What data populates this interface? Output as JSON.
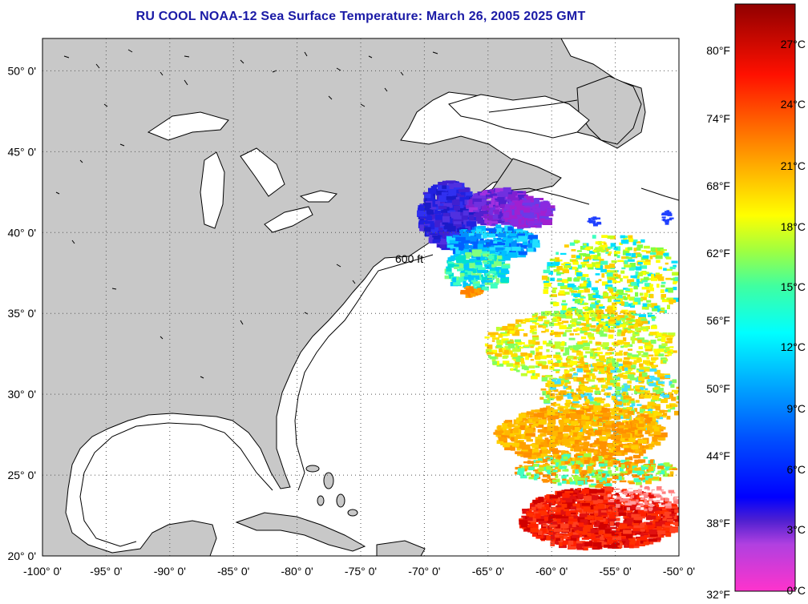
{
  "title": "RU COOL  NOAA-12  Sea Surface Temperature:  March 26, 2005 2025 GMT",
  "map": {
    "lon_range": [
      -100,
      -50
    ],
    "lat_range": [
      20,
      52
    ],
    "x_ticks": [
      {
        "value": -100,
        "label": "-100° 0'"
      },
      {
        "value": -95,
        "label": "-95° 0'"
      },
      {
        "value": -90,
        "label": "-90° 0'"
      },
      {
        "value": -85,
        "label": "-85° 0'"
      },
      {
        "value": -80,
        "label": "-80° 0'"
      },
      {
        "value": -75,
        "label": "-75° 0'"
      },
      {
        "value": -70,
        "label": "-70° 0'"
      },
      {
        "value": -65,
        "label": "-65° 0'"
      },
      {
        "value": -60,
        "label": "-60° 0'"
      },
      {
        "value": -55,
        "label": "-55° 0'"
      },
      {
        "value": -50,
        "label": "-50° 0'"
      }
    ],
    "y_ticks": [
      {
        "value": 50,
        "label": "50° 0'"
      },
      {
        "value": 45,
        "label": "45° 0'"
      },
      {
        "value": 40,
        "label": "40° 0'"
      },
      {
        "value": 35,
        "label": "35° 0'"
      },
      {
        "value": 30,
        "label": "30° 0'"
      },
      {
        "value": 25,
        "label": "25° 0'"
      },
      {
        "value": 20,
        "label": "20° 0'"
      }
    ],
    "isobath_label": "600 ft",
    "land_color": "#c8c8c8",
    "ocean_color": "#ffffff",
    "grid": "dotted"
  },
  "colorbar": {
    "fahrenheit": [
      "80°F",
      "74°F",
      "68°F",
      "62°F",
      "56°F",
      "50°F",
      "44°F",
      "38°F",
      "32°F"
    ],
    "celsius": [
      "27°C",
      "24°C",
      "21°C",
      "18°C",
      "15°C",
      "12°C",
      "9°C",
      "6°C",
      "3°C",
      "0°C"
    ],
    "range_celsius": [
      0,
      29
    ]
  }
}
